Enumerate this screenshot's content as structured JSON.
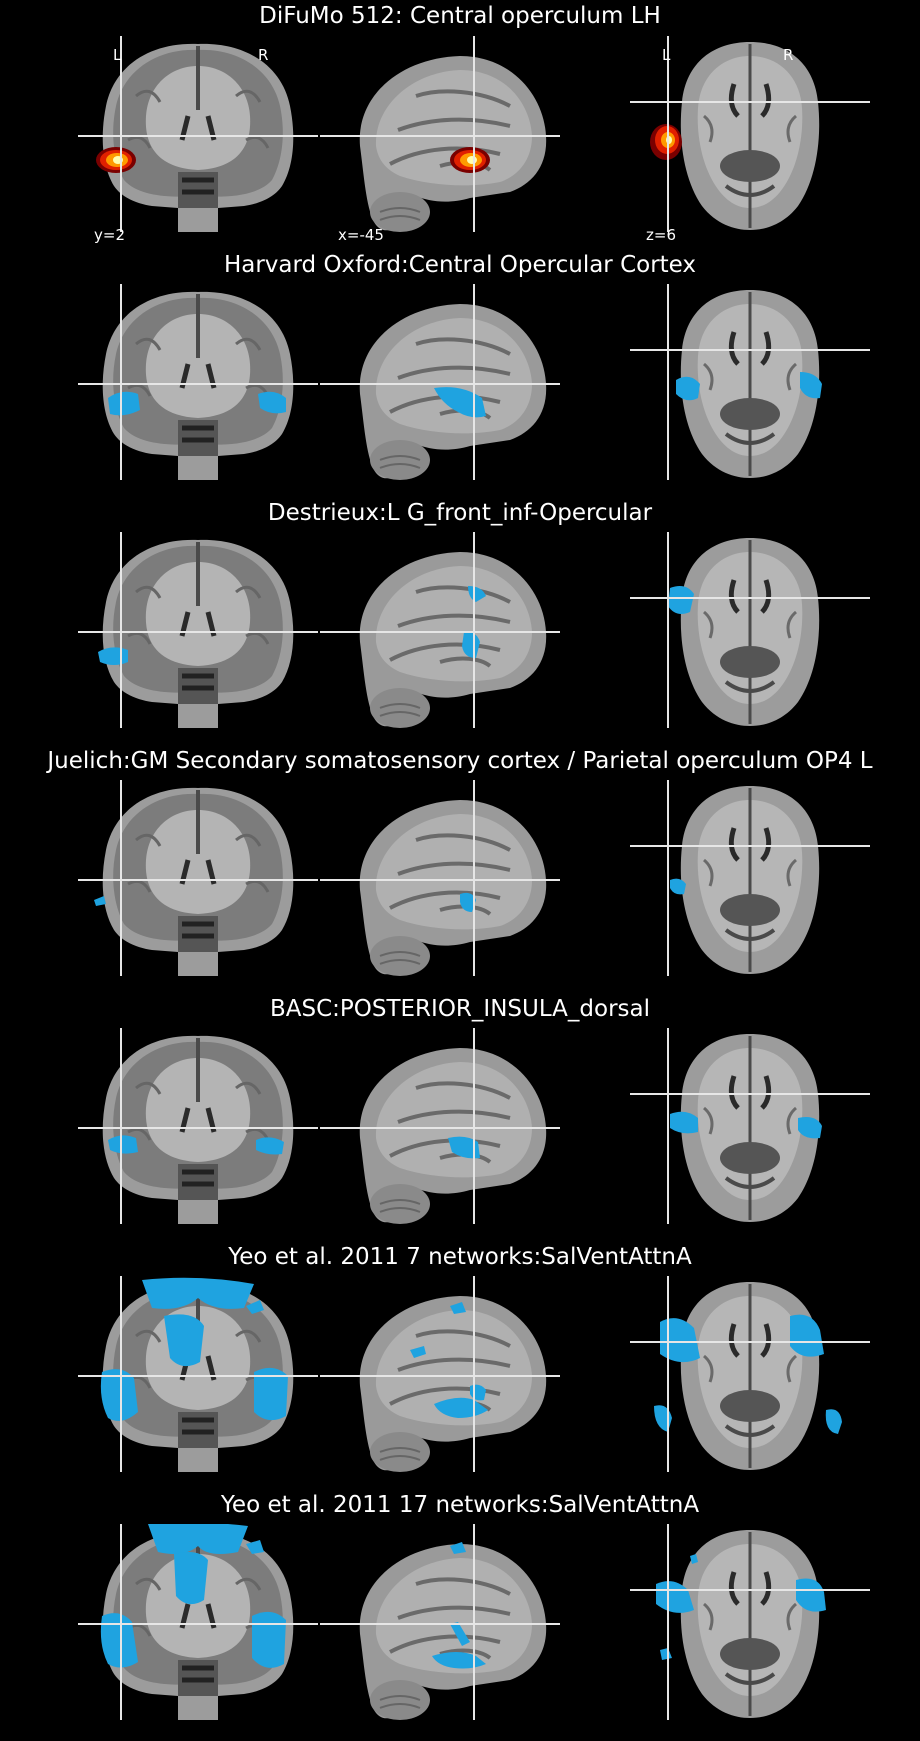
{
  "figure": {
    "background": "#000000",
    "blob_color": "#1fa3e0",
    "heat_colors": [
      "#7a0000",
      "#e02000",
      "#ff9a00",
      "#ffffb0"
    ],
    "rows": [
      {
        "title": "DiFuMo 512: Central operculum LH",
        "kind": "heat"
      },
      {
        "title": "Harvard Oxford:Central Opercular Cortex",
        "kind": "harvard"
      },
      {
        "title": "Destrieux:L G_front_inf-Opercular",
        "kind": "destrieux"
      },
      {
        "title": "Juelich:GM Secondary somatosensory cortex / Parietal operculum OP4 L",
        "kind": "juelich"
      },
      {
        "title": "BASC:POSTERIOR_INSULA_dorsal",
        "kind": "basc"
      },
      {
        "title": "Yeo et al. 2011 7 networks:SalVentAttnA",
        "kind": "yeo7"
      },
      {
        "title": "Yeo et al. 2011 17 networks:SalVentAttnA",
        "kind": "yeo17"
      }
    ],
    "orientation": {
      "left": "L",
      "right": "R"
    },
    "coords": {
      "y": "y=2",
      "x": "x=-45",
      "z": "z=6"
    }
  }
}
